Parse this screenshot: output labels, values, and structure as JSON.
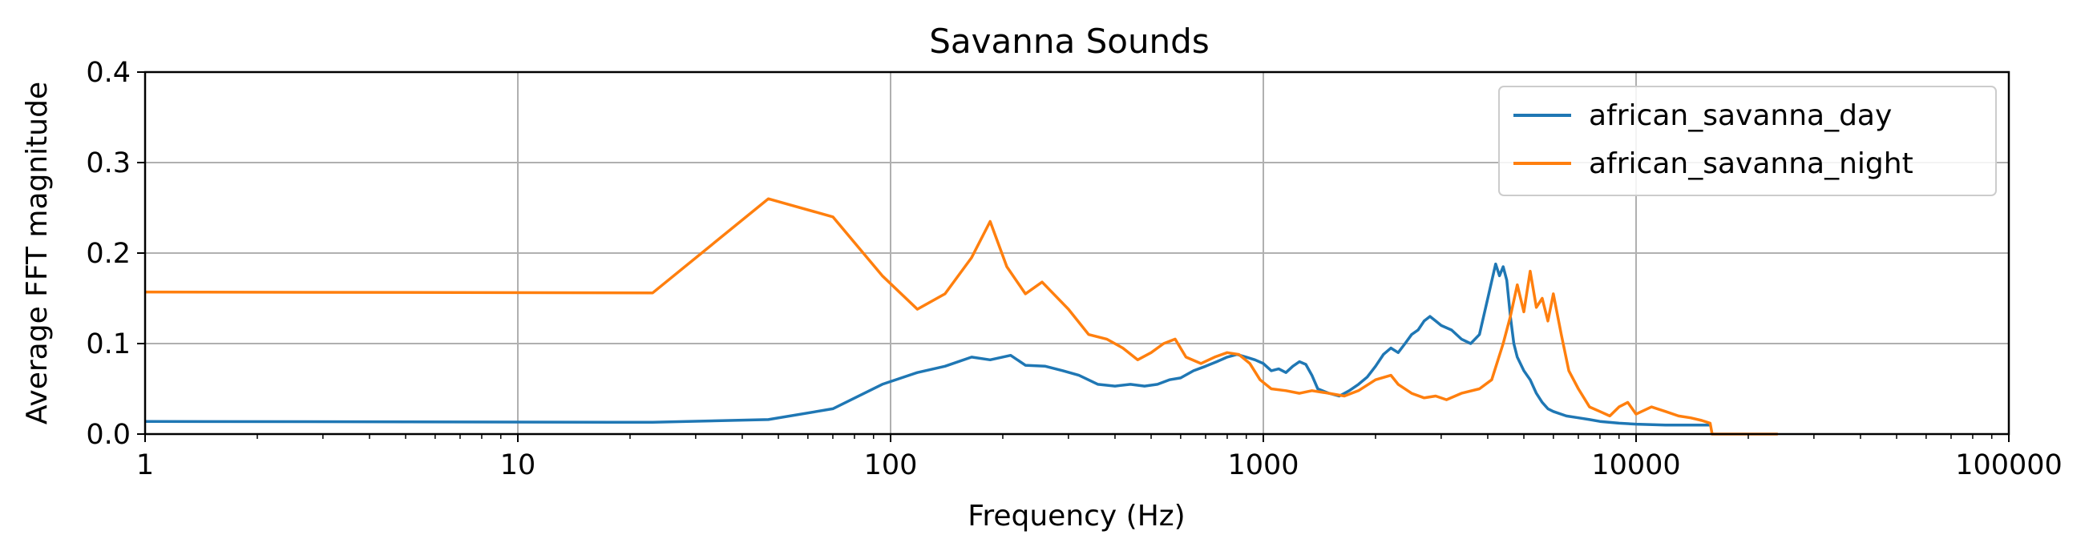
{
  "chart_data": {
    "type": "line",
    "title": "Savanna Sounds",
    "xlabel": "Frequency (Hz)",
    "ylabel": "Average FFT magnitude",
    "xscale": "log",
    "xlim": [
      1,
      100000
    ],
    "ylim": [
      0,
      0.4
    ],
    "x_ticks": [
      1,
      10,
      100,
      1000,
      10000,
      100000
    ],
    "x_tick_labels": [
      "1",
      "10",
      "100",
      "1000",
      "10000",
      "100000"
    ],
    "y_ticks": [
      0,
      0.1,
      0.2,
      0.3,
      0.4
    ],
    "y_tick_labels": [
      "0.0",
      "0.1",
      "0.2",
      "0.3",
      "0.4"
    ],
    "grid": true,
    "legend_position": "top-right",
    "series": [
      {
        "name": "african_savanna_day",
        "color": "#1f77b4",
        "x": [
          1,
          23,
          47,
          70,
          95,
          118,
          140,
          165,
          185,
          210,
          230,
          260,
          290,
          320,
          360,
          400,
          440,
          480,
          520,
          560,
          600,
          650,
          700,
          750,
          800,
          850,
          900,
          950,
          1000,
          1050,
          1100,
          1150,
          1200,
          1250,
          1300,
          1350,
          1400,
          1500,
          1600,
          1700,
          1800,
          1900,
          2000,
          2100,
          2200,
          2300,
          2400,
          2500,
          2600,
          2700,
          2800,
          2900,
          3000,
          3200,
          3400,
          3600,
          3800,
          4000,
          4200,
          4300,
          4400,
          4500,
          4600,
          4700,
          4800,
          5000,
          5200,
          5400,
          5600,
          5800,
          6000,
          6500,
          7000,
          7500,
          8000,
          9000,
          10000,
          12000,
          14000,
          15800
        ],
        "y": [
          0.014,
          0.013,
          0.016,
          0.028,
          0.055,
          0.068,
          0.075,
          0.085,
          0.082,
          0.087,
          0.076,
          0.075,
          0.07,
          0.065,
          0.055,
          0.053,
          0.055,
          0.053,
          0.055,
          0.06,
          0.062,
          0.07,
          0.075,
          0.08,
          0.085,
          0.088,
          0.085,
          0.082,
          0.078,
          0.07,
          0.072,
          0.068,
          0.075,
          0.08,
          0.077,
          0.065,
          0.05,
          0.045,
          0.042,
          0.048,
          0.055,
          0.063,
          0.075,
          0.088,
          0.095,
          0.09,
          0.1,
          0.11,
          0.115,
          0.125,
          0.13,
          0.125,
          0.12,
          0.115,
          0.105,
          0.1,
          0.11,
          0.15,
          0.188,
          0.175,
          0.185,
          0.17,
          0.13,
          0.1,
          0.085,
          0.07,
          0.06,
          0.045,
          0.035,
          0.028,
          0.025,
          0.02,
          0.018,
          0.016,
          0.014,
          0.012,
          0.011,
          0.01,
          0.01,
          0.01
        ]
      },
      {
        "name": "african_savanna_night",
        "color": "#ff7f0e",
        "x": [
          1,
          23,
          47,
          70,
          95,
          118,
          140,
          165,
          185,
          205,
          230,
          255,
          300,
          340,
          380,
          420,
          460,
          500,
          540,
          580,
          620,
          680,
          740,
          800,
          860,
          920,
          980,
          1050,
          1150,
          1250,
          1350,
          1500,
          1650,
          1800,
          2000,
          2200,
          2300,
          2500,
          2700,
          2900,
          3100,
          3400,
          3800,
          4100,
          4400,
          4600,
          4800,
          5000,
          5200,
          5400,
          5600,
          5800,
          6000,
          6300,
          6600,
          7000,
          7500,
          8000,
          8500,
          9000,
          9500,
          10000,
          11000,
          12000,
          13000,
          14000,
          15000,
          15800,
          16000,
          24000
        ],
        "y": [
          0.157,
          0.156,
          0.26,
          0.24,
          0.175,
          0.138,
          0.155,
          0.195,
          0.235,
          0.185,
          0.155,
          0.168,
          0.138,
          0.11,
          0.105,
          0.095,
          0.082,
          0.09,
          0.1,
          0.105,
          0.085,
          0.078,
          0.085,
          0.09,
          0.088,
          0.078,
          0.06,
          0.05,
          0.048,
          0.045,
          0.048,
          0.045,
          0.042,
          0.048,
          0.06,
          0.065,
          0.055,
          0.045,
          0.04,
          0.042,
          0.038,
          0.045,
          0.05,
          0.06,
          0.1,
          0.13,
          0.165,
          0.135,
          0.18,
          0.14,
          0.15,
          0.125,
          0.155,
          0.11,
          0.07,
          0.05,
          0.03,
          0.025,
          0.02,
          0.03,
          0.035,
          0.022,
          0.03,
          0.025,
          0.02,
          0.018,
          0.015,
          0.012,
          0.0,
          0.0
        ]
      }
    ]
  }
}
